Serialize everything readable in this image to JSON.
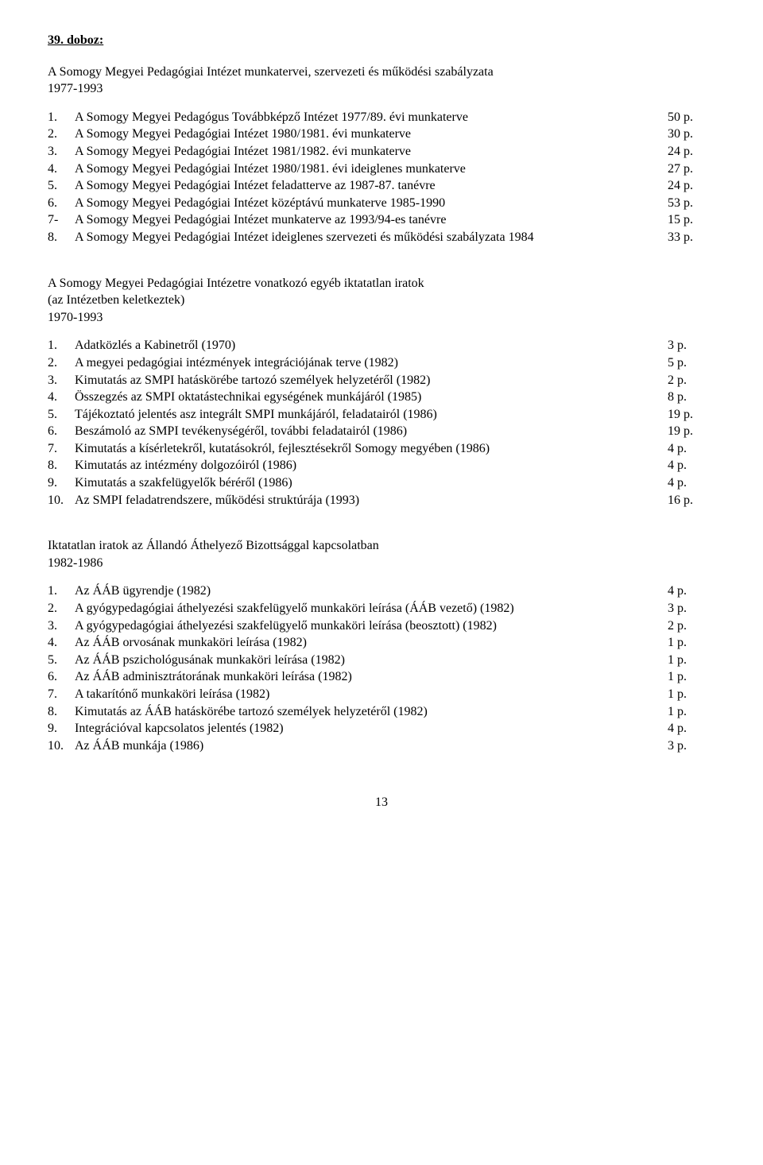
{
  "heading": "39. doboz:",
  "section1": {
    "intro_lines": [
      "A Somogy Megyei Pedagógiai Intézet munkatervei, szervezeti és működési szabályzata",
      "1977-1993"
    ],
    "items": [
      {
        "num": "1.",
        "text": "A Somogy Megyei Pedagógus Továbbképző Intézet 1977/89. évi munkaterve",
        "pages": "50 p."
      },
      {
        "num": "2.",
        "text": "A Somogy Megyei Pedagógiai Intézet 1980/1981. évi munkaterve",
        "pages": "30 p."
      },
      {
        "num": "3.",
        "text": "A Somogy Megyei Pedagógiai Intézet 1981/1982. évi munkaterve",
        "pages": "24 p."
      },
      {
        "num": "4.",
        "text": "A Somogy Megyei Pedagógiai Intézet 1980/1981. évi ideiglenes munkaterve",
        "pages": "27 p."
      },
      {
        "num": "5.",
        "text": "A Somogy Megyei Pedagógiai Intézet feladatterve az 1987-87. tanévre",
        "pages": "24 p."
      },
      {
        "num": "6.",
        "text": "A Somogy Megyei Pedagógiai Intézet középtávú munkaterve 1985-1990",
        "pages": "53 p."
      },
      {
        "num": "7-",
        "text": "A Somogy Megyei Pedagógiai Intézet munkaterve az 1993/94-es tanévre",
        "pages": "15 p."
      },
      {
        "num": "8.",
        "text": "A Somogy Megyei Pedagógiai Intézet ideiglenes szervezeti és működési szabályzata 1984",
        "pages": "33 p."
      }
    ]
  },
  "section2": {
    "intro_lines": [
      "A Somogy Megyei Pedagógiai Intézetre vonatkozó egyéb iktatatlan iratok",
      "(az Intézetben keletkeztek)",
      "1970-1993"
    ],
    "items": [
      {
        "num": "1.",
        "text": "Adatközlés a Kabinetről (1970)",
        "pages": "3 p."
      },
      {
        "num": "2.",
        "text": "A megyei pedagógiai intézmények integrációjának terve (1982)",
        "pages": "5 p."
      },
      {
        "num": "3.",
        "text": "Kimutatás az SMPI hatáskörébe tartozó személyek helyzetéről (1982)",
        "pages": "2 p."
      },
      {
        "num": "4.",
        "text": "Összegzés az SMPI oktatástechnikai egységének munkájáról (1985)",
        "pages": "8 p."
      },
      {
        "num": "5.",
        "text": "Tájékoztató jelentés asz integrált SMPI munkájáról, feladatairól (1986)",
        "pages": "19 p."
      },
      {
        "num": "6.",
        "text": "Beszámoló az SMPI tevékenységéről, további feladatairól (1986)",
        "pages": "19 p."
      },
      {
        "num": "7.",
        "text": "Kimutatás a kísérletekről, kutatásokról, fejlesztésekről Somogy megyében (1986)",
        "pages": "4 p."
      },
      {
        "num": "8.",
        "text": "Kimutatás az intézmény dolgozóiról (1986)",
        "pages": "4 p."
      },
      {
        "num": "9.",
        "text": "Kimutatás a szakfelügyelők béréről (1986)",
        "pages": "4 p."
      },
      {
        "num": "10.",
        "text": "Az SMPI feladatrendszere, működési struktúrája (1993)",
        "pages": "16 p."
      }
    ]
  },
  "section3": {
    "intro_lines": [
      "Iktatatlan iratok az Állandó Áthelyező Bizottsággal kapcsolatban",
      "1982-1986"
    ],
    "items": [
      {
        "num": "1.",
        "text": "Az ÁÁB ügyrendje (1982)",
        "pages": "4 p."
      },
      {
        "num": "2.",
        "text": "A gyógypedagógiai áthelyezési szakfelügyelő munkaköri leírása (ÁÁB vezető) (1982)",
        "pages": "3 p."
      },
      {
        "num": "3.",
        "text": "A gyógypedagógiai áthelyezési szakfelügyelő munkaköri leírása (beosztott) (1982)",
        "pages": "2 p."
      },
      {
        "num": "4.",
        "text": "Az ÁÁB orvosának munkaköri leírása (1982)",
        "pages": "1 p."
      },
      {
        "num": "5.",
        "text": "Az ÁÁB pszichológusának munkaköri leírása (1982)",
        "pages": "1 p."
      },
      {
        "num": "6.",
        "text": "Az ÁÁB adminisztrátorának munkaköri leírása (1982)",
        "pages": "1 p."
      },
      {
        "num": "7.",
        "text": "A takarítónő munkaköri leírása (1982)",
        "pages": "1 p."
      },
      {
        "num": "8.",
        "text": "Kimutatás az ÁÁB hatáskörébe tartozó személyek helyzetéről (1982)",
        "pages": "1 p."
      },
      {
        "num": "9.",
        "text": "Integrációval kapcsolatos jelentés (1982)",
        "pages": "4 p."
      },
      {
        "num": "10.",
        "text": "Az ÁÁB munkája (1986)",
        "pages": "3 p."
      }
    ]
  },
  "page_number": "13"
}
